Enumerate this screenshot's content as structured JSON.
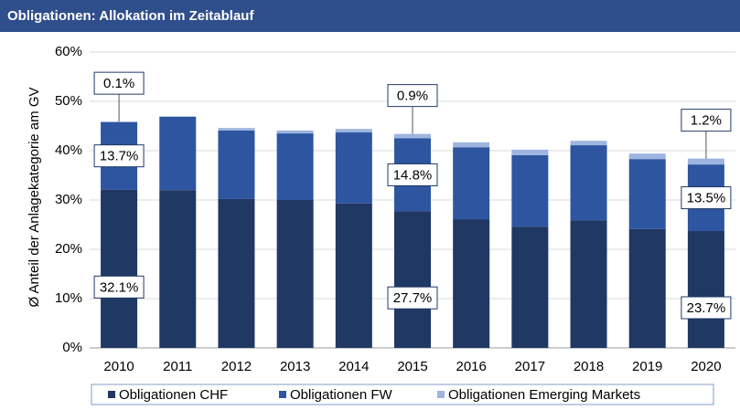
{
  "chart_data": {
    "type": "stacked_bar",
    "title": "Obligationen: Allokation im Zeitablauf",
    "y_label": "Ø Anteil der Anlagekategorie am GV",
    "categories": [
      "2010",
      "2011",
      "2012",
      "2013",
      "2014",
      "2015",
      "2016",
      "2017",
      "2018",
      "2019",
      "2020"
    ],
    "series": [
      {
        "name": "Obligationen CHF",
        "color": "#1f3864",
        "values": [
          32.1,
          32.0,
          30.2,
          30.0,
          29.3,
          27.7,
          26.1,
          24.6,
          25.9,
          24.1,
          23.7
        ],
        "value_labels": [
          "32.1%",
          null,
          null,
          null,
          null,
          "27.7%",
          null,
          null,
          null,
          null,
          "23.7%"
        ]
      },
      {
        "name": "Obligationen FW",
        "color": "#2e55a0",
        "values": [
          13.7,
          14.9,
          13.9,
          13.5,
          14.4,
          14.8,
          14.6,
          14.5,
          15.2,
          14.2,
          13.5
        ],
        "value_labels": [
          "13.7%",
          null,
          null,
          null,
          null,
          "14.8%",
          null,
          null,
          null,
          null,
          "13.5%"
        ]
      },
      {
        "name": "Obligationen Emerging Markets",
        "color": "#9db5e0",
        "values": [
          0.1,
          0.0,
          0.5,
          0.6,
          0.7,
          0.9,
          1.0,
          1.1,
          0.9,
          1.1,
          1.2
        ],
        "value_labels": [
          "0.1%",
          null,
          null,
          null,
          null,
          "0.9%",
          null,
          null,
          null,
          null,
          "1.2%"
        ]
      }
    ],
    "ylim": [
      0,
      60
    ],
    "yticks": [
      {
        "value": 0,
        "label": "0%"
      },
      {
        "value": 10,
        "label": "10%"
      },
      {
        "value": 20,
        "label": "20%"
      },
      {
        "value": 30,
        "label": "30%"
      },
      {
        "value": 40,
        "label": "40%"
      },
      {
        "value": 50,
        "label": "50%"
      },
      {
        "value": 60,
        "label": "60%"
      }
    ],
    "grid": true,
    "legend": "bottom"
  }
}
